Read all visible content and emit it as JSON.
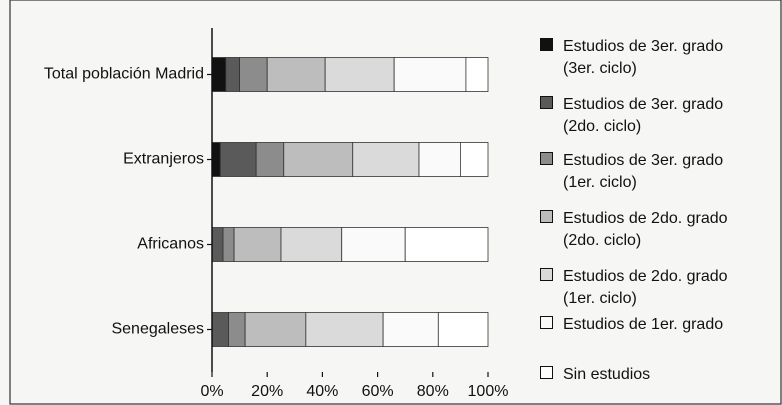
{
  "chart_data": {
    "type": "stacked-barh",
    "categories": [
      "Total población Madrid",
      "Extranjeros",
      "Africanos",
      "Senegaleses"
    ],
    "series": [
      {
        "name": "Estudios de 3er. grado (3er. ciclo)",
        "color": "#111111",
        "values": [
          5,
          3,
          0,
          0
        ]
      },
      {
        "name": "Estudios de 3er. grado (2do. ciclo)",
        "color": "#5a5a5a",
        "values": [
          5,
          13,
          4,
          6
        ]
      },
      {
        "name": "Estudios de 3er. grado (1er. ciclo)",
        "color": "#8c8c8c",
        "values": [
          10,
          10,
          4,
          6
        ]
      },
      {
        "name": "Estudios de 2do. grado (2do. ciclo)",
        "color": "#bdbdbd",
        "values": [
          21,
          25,
          17,
          22
        ]
      },
      {
        "name": "Estudios de 2do. grado (1er. ciclo)",
        "color": "#dadada",
        "values": [
          25,
          24,
          22,
          28
        ]
      },
      {
        "name": "Estudios de 1er. grado",
        "color": "#fafafa",
        "values": [
          26,
          15,
          23,
          20
        ]
      },
      {
        "name": "Sin estudios",
        "color": "#ffffff",
        "values": [
          8,
          10,
          30,
          18
        ]
      }
    ],
    "xlim": [
      0,
      100
    ],
    "xticks": [
      {
        "value": 0,
        "label": "0%"
      },
      {
        "value": 20,
        "label": "20%"
      },
      {
        "value": 40,
        "label": "40%"
      },
      {
        "value": 60,
        "label": "60%"
      },
      {
        "value": 80,
        "label": "80%"
      },
      {
        "value": 100,
        "label": "100%"
      }
    ]
  }
}
